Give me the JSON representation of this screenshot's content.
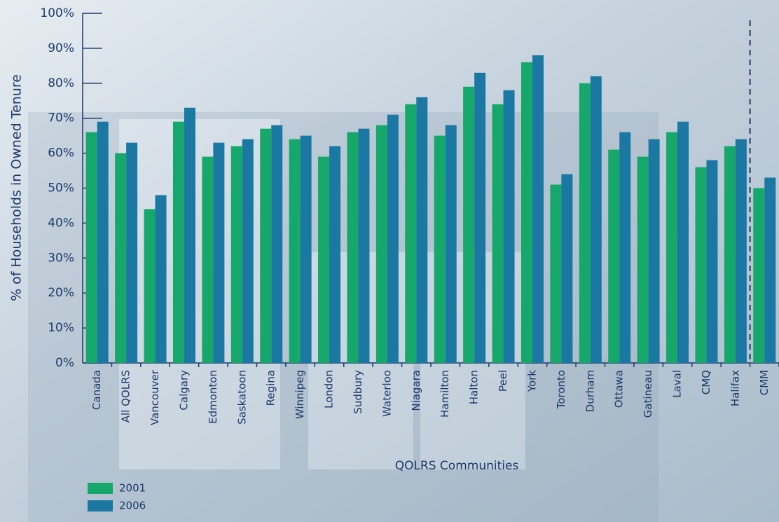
{
  "chart_data": {
    "type": "bar",
    "y_label": "% of Households in Owned Tenure",
    "x_label": "QOLRS Communities",
    "categories": [
      "Canada",
      "All QOLRS",
      "Vancouver",
      "Calgary",
      "Edmonton",
      "Saskatoon",
      "Regina",
      "Winnipeg",
      "London",
      "Sudbury",
      "Waterloo",
      "Niagara",
      "Hamilton",
      "Halton",
      "Peel",
      "York",
      "Toronto",
      "Durham",
      "Ottawa",
      "Gatineau",
      "Laval",
      "CMQ",
      "Halifax",
      "CMM"
    ],
    "series": [
      {
        "name": "2001",
        "color": "#15a86a",
        "values": [
          66,
          60,
          44,
          69,
          59,
          62,
          67,
          64,
          59,
          66,
          68,
          74,
          65,
          79,
          74,
          86,
          51,
          80,
          61,
          59,
          66,
          56,
          62,
          50
        ]
      },
      {
        "name": "2006",
        "color": "#1a78a3",
        "values": [
          69,
          63,
          48,
          73,
          63,
          64,
          68,
          65,
          62,
          67,
          71,
          76,
          68,
          83,
          78,
          88,
          54,
          82,
          66,
          64,
          69,
          58,
          64,
          53
        ]
      }
    ],
    "ylim": [
      0,
      100
    ],
    "yticks": [
      {
        "value": 0,
        "label": "0%"
      },
      {
        "value": 10,
        "label": "10%"
      },
      {
        "value": 20,
        "label": "20%"
      },
      {
        "value": 30,
        "label": "30%"
      },
      {
        "value": 40,
        "label": "40%"
      },
      {
        "value": 50,
        "label": "50%"
      },
      {
        "value": 60,
        "label": "60%"
      },
      {
        "value": 70,
        "label": "70%"
      },
      {
        "value": 80,
        "label": "80%"
      },
      {
        "value": 90,
        "label": "90%"
      },
      {
        "value": 100,
        "label": "100%"
      }
    ]
  }
}
